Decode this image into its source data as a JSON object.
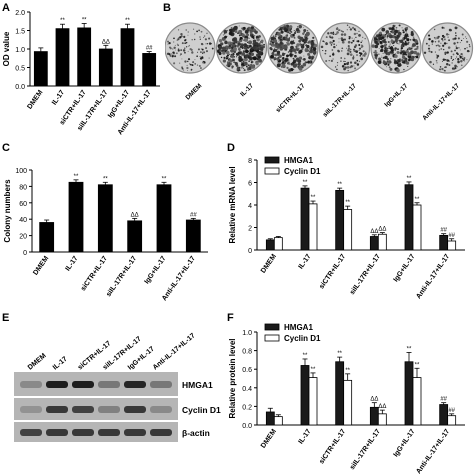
{
  "panels": {
    "A": "A",
    "B": "B",
    "C": "C",
    "D": "D",
    "E": "E",
    "F": "F"
  },
  "panel_b_labels": [
    "DMEM",
    "IL-17",
    "siCTR+IL-17",
    "siIL-17R+IL-17",
    "IgG+IL-17",
    "Anti-IL-17+IL-17"
  ],
  "panel_e": {
    "lanes": [
      "DMEM",
      "IL-17",
      "siCTR+IL-17",
      "siIL-17R+IL-17",
      "IgG+IL-17",
      "Anti-IL-17+IL-17"
    ],
    "bands": [
      "HMGA1",
      "Cyclin D1",
      "β-actin"
    ]
  },
  "chart_data": [
    {
      "id": "A",
      "type": "bar",
      "categories": [
        "DMEM",
        "IL-17",
        "siCTR+IL-17",
        "siIL-17R+IL-17",
        "IgG+IL-17",
        "Anti-IL-17+IL-17"
      ],
      "values": [
        0.93,
        1.55,
        1.57,
        1.0,
        1.55,
        0.88
      ],
      "errors": [
        0.1,
        0.12,
        0.12,
        0.1,
        0.12,
        0.05
      ],
      "annotations": [
        "",
        "**",
        "**",
        "ΔΔ",
        "**",
        "##"
      ],
      "ylabel": "OD value",
      "ylim": [
        0,
        2.0
      ],
      "yticks": [
        "0.0",
        "0.5",
        "1.0",
        "1.5",
        "2.0"
      ]
    },
    {
      "id": "C",
      "type": "bar",
      "categories": [
        "DMEM",
        "IL-17",
        "siCTR+IL-17",
        "siIL-17R+IL-17",
        "IgG+IL-17",
        "Anti-IL-17+IL-17"
      ],
      "values": [
        36,
        85,
        82,
        38,
        82,
        39
      ],
      "errors": [
        3,
        3,
        3,
        3,
        3,
        2
      ],
      "annotations": [
        "",
        "**",
        "**",
        "ΔΔ",
        "**",
        "##"
      ],
      "ylabel": "Colony numbers",
      "ylim": [
        0,
        100
      ],
      "yticks": [
        "0",
        "20",
        "40",
        "60",
        "80",
        "100"
      ]
    },
    {
      "id": "D",
      "type": "bar",
      "categories": [
        "DMEM",
        "IL-17",
        "siCTR+IL-17",
        "siIL-17R+IL-17",
        "IgG+IL-17",
        "Anti-IL-17+IL-17"
      ],
      "series": [
        {
          "name": "HMGA1",
          "values": [
            0.9,
            5.5,
            5.3,
            1.2,
            5.8,
            1.3
          ],
          "errors": [
            0.1,
            0.2,
            0.2,
            0.15,
            0.25,
            0.15
          ],
          "annotations": [
            "",
            "**",
            "**",
            "ΔΔ",
            "**",
            "##"
          ],
          "color": "#1a1a1a"
        },
        {
          "name": "Cyclin D1",
          "values": [
            1.1,
            4.1,
            3.6,
            1.4,
            4.0,
            0.8
          ],
          "errors": [
            0.1,
            0.25,
            0.3,
            0.15,
            0.2,
            0.2
          ],
          "annotations": [
            "",
            "**",
            "**",
            "ΔΔ",
            "**",
            "##"
          ],
          "color": "#ffffff"
        }
      ],
      "ylabel": "Relative mRNA level",
      "ylim": [
        0,
        8
      ],
      "yticks": [
        "0",
        "2",
        "4",
        "6",
        "8"
      ],
      "legend": "top-left"
    },
    {
      "id": "F",
      "type": "bar",
      "categories": [
        "DMEM",
        "IL-17",
        "siCTR+IL-17",
        "siIL-17R+IL-17",
        "IgG+IL-17",
        "Anti-IL-17+IL-17"
      ],
      "series": [
        {
          "name": "HMGA1",
          "values": [
            0.14,
            0.64,
            0.68,
            0.19,
            0.68,
            0.22
          ],
          "errors": [
            0.04,
            0.07,
            0.05,
            0.05,
            0.1,
            0.02
          ],
          "annotations": [
            "",
            "**",
            "**",
            "ΔΔ",
            "**",
            "##"
          ],
          "color": "#1a1a1a"
        },
        {
          "name": "Cyclin D1",
          "values": [
            0.09,
            0.51,
            0.48,
            0.12,
            0.51,
            0.1
          ],
          "errors": [
            0.02,
            0.05,
            0.07,
            0.04,
            0.1,
            0.02
          ],
          "annotations": [
            "",
            "**",
            "**",
            "ΔΔ",
            "**",
            "##"
          ],
          "color": "#ffffff"
        }
      ],
      "ylabel": "Relative protein level",
      "ylim": [
        0,
        1.0
      ],
      "yticks": [
        "0.0",
        "0.2",
        "0.4",
        "0.6",
        "0.8",
        "1.0"
      ],
      "legend": "top-left"
    }
  ]
}
